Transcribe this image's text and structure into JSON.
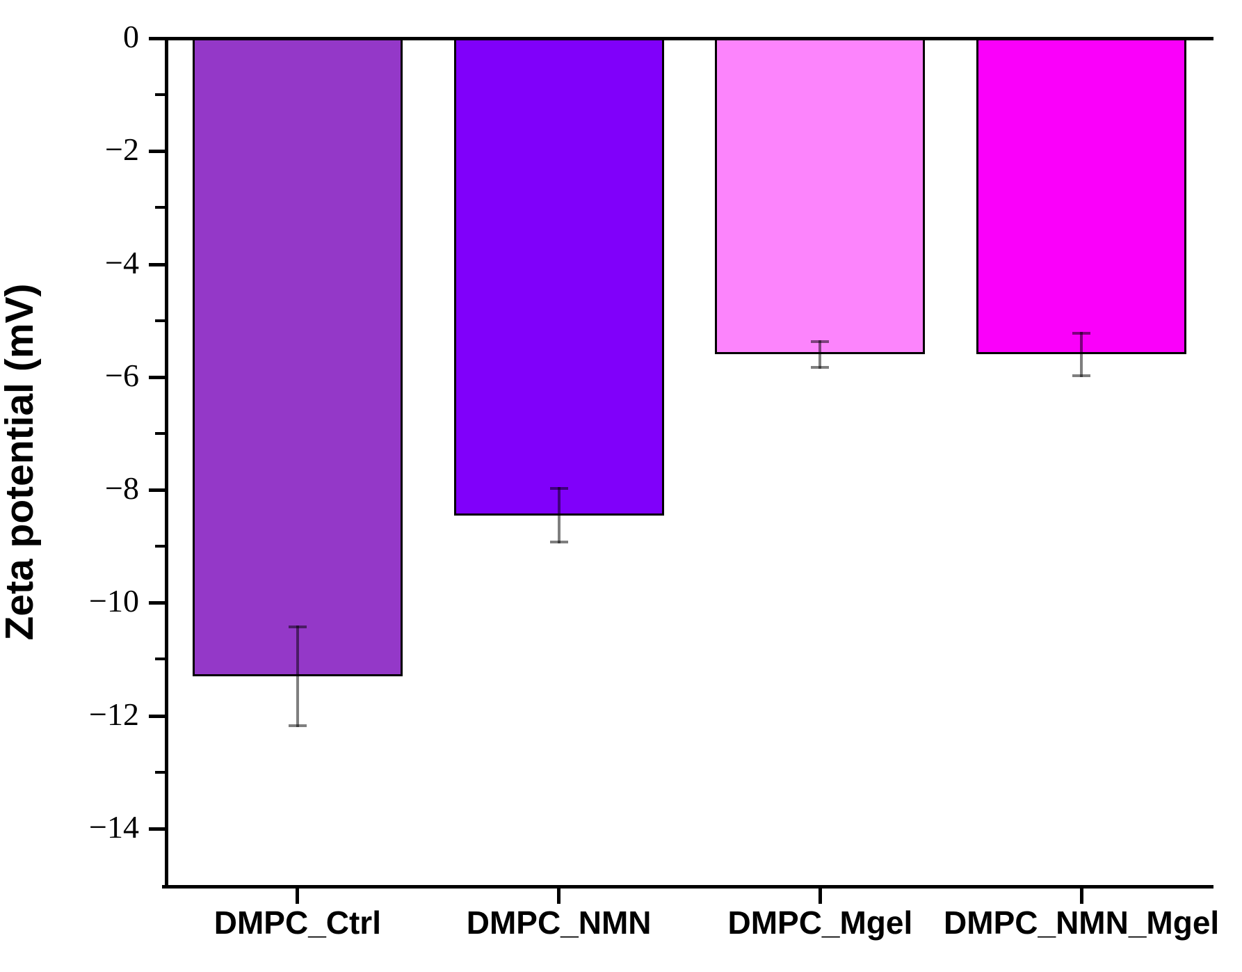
{
  "chart_data": {
    "type": "bar",
    "title": "",
    "xlabel": "",
    "ylabel": "Zeta potential (mV)",
    "categories": [
      "DMPC_Ctrl",
      "DMPC_NMN",
      "DMPC_Mgel",
      "DMPC_NMN_Mgel"
    ],
    "values": [
      -11.3,
      -8.45,
      -5.6,
      -5.6
    ],
    "errors": [
      0.9,
      0.5,
      0.25,
      0.4
    ],
    "bar_colors": [
      "#9438c8",
      "#8000fa",
      "#fc84fc",
      "#fa00fa"
    ],
    "bar_border_color": "#000000",
    "error_bar_color": "rgba(0,0,0,0.5)",
    "ylim": [
      -15,
      0
    ],
    "y_major_ticks": [
      0,
      -2,
      -4,
      -6,
      -8,
      -10,
      -12,
      -14
    ],
    "y_tick_labels": [
      "0",
      "−2",
      "−4",
      "−6",
      "−8",
      "−10",
      "−12",
      "−14"
    ],
    "y_minor_ticks": [
      -1,
      -3,
      -5,
      -7,
      -9,
      -11,
      -13
    ],
    "grid": false,
    "legend": null,
    "axis_color": "#000000",
    "background_color": "#ffffff"
  }
}
